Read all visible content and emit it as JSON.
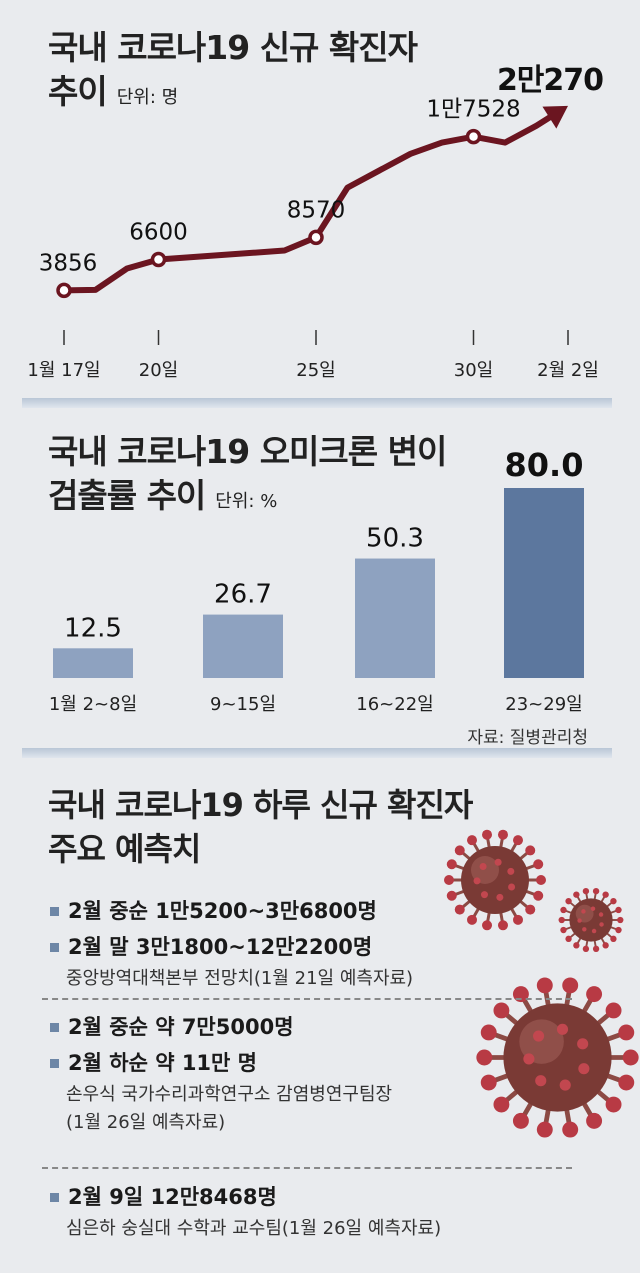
{
  "panel1": {
    "title_line1": "국내 코로나19 신규 확진자",
    "title_line2": "추이",
    "unit": "단위: 명"
  },
  "panel2": {
    "title_line1": "국내 코로나19 오미크론 변이",
    "title_line2": "검출률 추이",
    "unit": "단위: %",
    "source": "자료: 질병관리청"
  },
  "panel3": {
    "title_line1": "국내 코로나19 하루 신규 확진자",
    "title_line2": "주요 예측치",
    "groups": [
      {
        "items": [
          "2월 중순 1만5200~3만6800명",
          "2월 말 3만1800~12만2200명"
        ],
        "notes": [
          "중앙방역대책본부 전망치(1월 21일 예측자료)"
        ]
      },
      {
        "items": [
          "2월 중순 약 7만5000명",
          "2월 하순 약 11만 명"
        ],
        "notes": [
          "손우식 국가수리과학연구소 감염병연구팀장",
          "(1월 26일 예측자료)"
        ]
      },
      {
        "items": [
          "2월 9일 12만8468명"
        ],
        "notes": [
          "심은하 숭실대 수학과 교수팀(1월 26일 예측자료)"
        ]
      }
    ]
  },
  "colors": {
    "line": "#6b1520",
    "bar_light": "#8ea2c0",
    "bar_dark": "#5c779e",
    "bullet": "#6d86a6",
    "virus": "#7a3a35"
  },
  "chart_data": [
    {
      "type": "line",
      "x": [
        "1월 17일",
        "1월 18일",
        "1월 19일",
        "20일",
        "1월 21일",
        "1월 22일",
        "1월 23일",
        "1월 24일",
        "25일",
        "1월 26일",
        "1월 27일",
        "1월 28일",
        "1월 29일",
        "30일",
        "1월 31일",
        "2월 1일",
        "2월 2일"
      ],
      "x_tick_labels": [
        "1월 17일",
        "20일",
        "25일",
        "30일",
        "2월 2일"
      ],
      "x_tick_indices": [
        0,
        3,
        8,
        13,
        16
      ],
      "values": [
        3856,
        3900,
        5800,
        6600,
        6800,
        7000,
        7200,
        7400,
        8570,
        13000,
        14500,
        16000,
        17000,
        17528,
        17000,
        18500,
        20270
      ],
      "labels": [
        {
          "index": 0,
          "text": "3856"
        },
        {
          "index": 3,
          "text": "6600"
        },
        {
          "index": 8,
          "text": "8570"
        },
        {
          "index": 13,
          "text": "1만7528"
        },
        {
          "index": 16,
          "text": "2만270"
        }
      ],
      "ylim": [
        3000,
        21500
      ],
      "grid": false
    },
    {
      "type": "bar",
      "categories": [
        "1월 2~8일",
        "9~15일",
        "16~22일",
        "23~29일"
      ],
      "values": [
        12.5,
        26.7,
        50.3,
        80.0
      ],
      "value_labels": [
        "12.5",
        "26.7",
        "50.3",
        "80.0"
      ],
      "ylim": [
        0,
        80
      ],
      "grid": false
    }
  ]
}
